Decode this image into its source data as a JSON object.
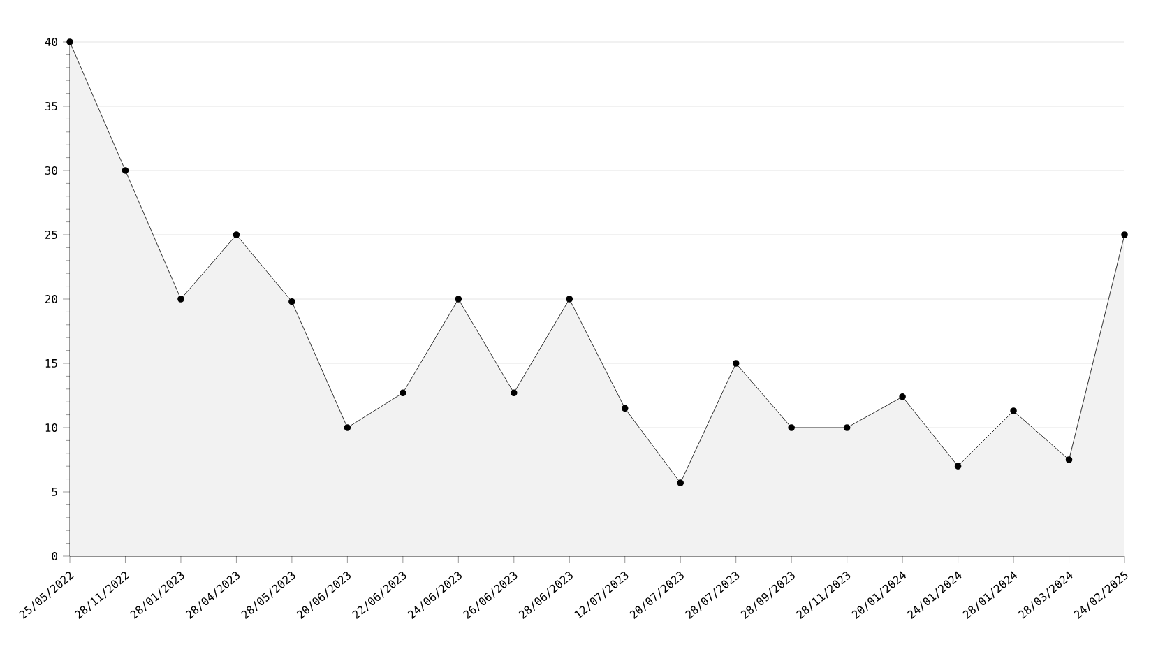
{
  "chart_data": {
    "type": "area",
    "categories": [
      "25/05/2022",
      "28/11/2022",
      "28/01/2023",
      "28/04/2023",
      "28/05/2023",
      "20/06/2023",
      "22/06/2023",
      "24/06/2023",
      "26/06/2023",
      "28/06/2023",
      "12/07/2023",
      "20/07/2023",
      "28/07/2023",
      "28/09/2023",
      "28/11/2023",
      "20/01/2024",
      "24/01/2024",
      "28/01/2024",
      "28/03/2024",
      "24/02/2025"
    ],
    "series": [
      {
        "color": "#000000",
        "values": [
          40,
          30,
          20,
          25,
          19.8,
          10,
          12.7,
          20,
          12.7,
          20,
          11.5,
          5.7,
          15,
          10,
          10,
          12.4,
          7,
          11.3,
          7.5,
          25
        ]
      }
    ],
    "ylim": [
      0,
      40
    ],
    "yticks": [
      0,
      5,
      10,
      15,
      20,
      25,
      30,
      35,
      40
    ],
    "grid": "y",
    "marker": "circle",
    "line_style": "solid"
  }
}
